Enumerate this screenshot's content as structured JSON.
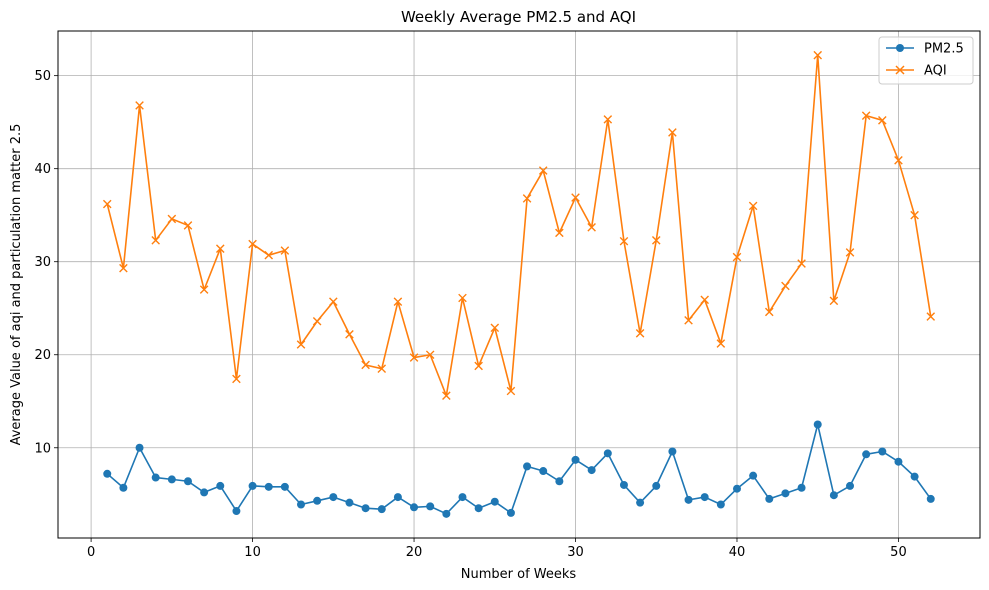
{
  "chart_data": {
    "type": "line",
    "title": "Weekly Average PM2.5 and AQI",
    "xlabel": "Number of Weeks",
    "ylabel": "Average Value of aqi and particulation matter 2.5",
    "xlim": [
      -2.05,
      55.05
    ],
    "ylim": [
      0.3,
      54.8
    ],
    "xticks": [
      0,
      10,
      20,
      30,
      40,
      50
    ],
    "yticks": [
      10,
      20,
      30,
      40,
      50
    ],
    "grid": true,
    "legend_position": "top-right",
    "x": [
      1,
      2,
      3,
      4,
      5,
      6,
      7,
      8,
      9,
      10,
      11,
      12,
      13,
      14,
      15,
      16,
      17,
      18,
      19,
      20,
      21,
      22,
      23,
      24,
      25,
      26,
      27,
      28,
      29,
      30,
      31,
      32,
      33,
      34,
      35,
      36,
      37,
      38,
      39,
      40,
      41,
      42,
      43,
      44,
      45,
      46,
      47,
      48,
      49,
      50,
      51,
      52
    ],
    "series": [
      {
        "name": "PM2.5",
        "color": "#1f77b4",
        "marker": "circle",
        "values": [
          7.2,
          5.7,
          10.0,
          6.8,
          6.6,
          6.4,
          5.2,
          5.9,
          3.2,
          5.9,
          5.8,
          5.8,
          3.9,
          4.3,
          4.7,
          4.1,
          3.5,
          3.4,
          4.7,
          3.6,
          3.7,
          2.9,
          4.7,
          3.5,
          4.2,
          3.0,
          8.0,
          7.5,
          6.4,
          8.7,
          7.6,
          9.4,
          6.0,
          4.1,
          5.9,
          9.6,
          4.4,
          4.7,
          3.9,
          5.6,
          7.0,
          4.5,
          5.1,
          5.7,
          12.5,
          4.9,
          5.9,
          9.3,
          9.6,
          8.5,
          6.9,
          4.5
        ]
      },
      {
        "name": "AQI",
        "color": "#ff7f0e",
        "marker": "x",
        "values": [
          36.2,
          29.3,
          46.8,
          32.3,
          34.6,
          33.9,
          27.0,
          31.4,
          17.4,
          31.9,
          30.7,
          31.2,
          21.1,
          23.6,
          25.7,
          22.2,
          18.9,
          18.5,
          25.7,
          19.7,
          20.0,
          15.6,
          26.1,
          18.8,
          22.9,
          16.1,
          36.8,
          39.8,
          33.1,
          36.9,
          33.7,
          45.3,
          32.2,
          22.3,
          32.3,
          43.9,
          23.7,
          25.9,
          21.2,
          30.5,
          36.0,
          24.6,
          27.4,
          29.8,
          52.2,
          25.8,
          31.0,
          45.7,
          45.2,
          40.9,
          35.0,
          24.1
        ]
      }
    ]
  }
}
